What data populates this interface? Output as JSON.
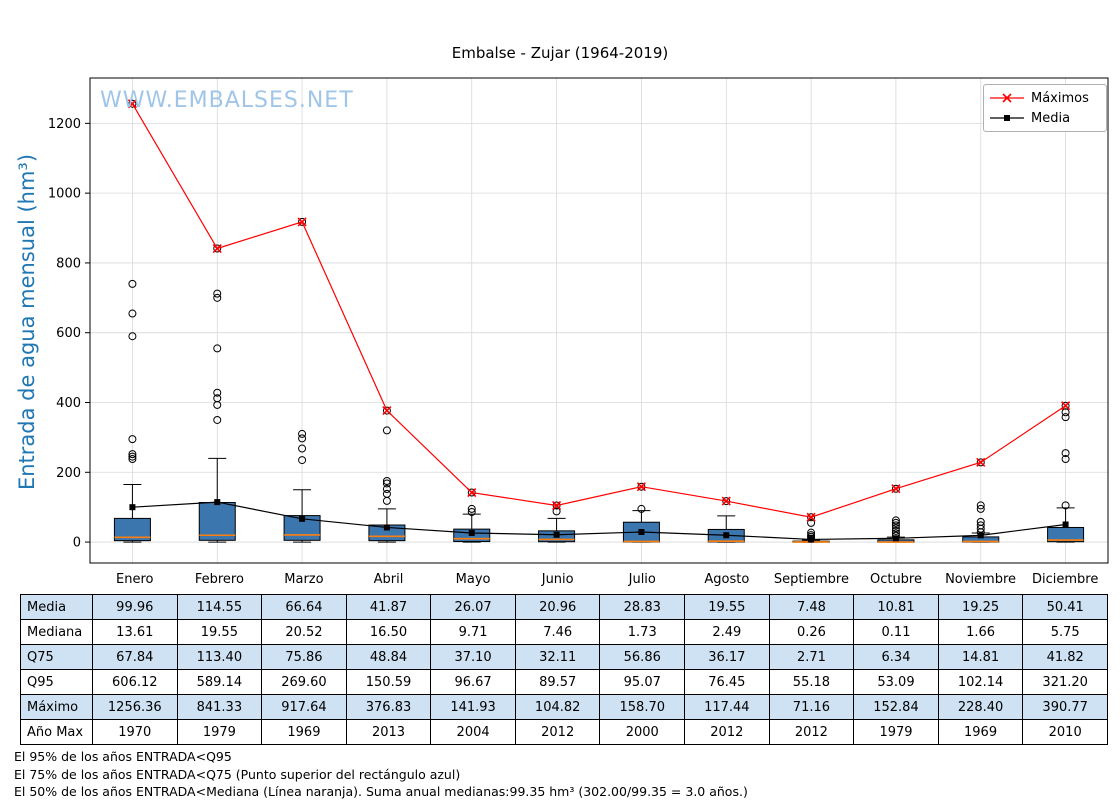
{
  "title": "Embalse - Zujar (1964-2019)",
  "watermark": "WWW.EMBALSES.NET",
  "y_axis_label": "Entrada de agua mensual (hm³)",
  "legend": {
    "maximos": "Máximos",
    "media": "Media"
  },
  "months": [
    "Enero",
    "Febrero",
    "Marzo",
    "Abril",
    "Mayo",
    "Junio",
    "Julio",
    "Agosto",
    "Septiembre",
    "Octubre",
    "Noviembre",
    "Diciembre"
  ],
  "table": {
    "rows": [
      {
        "label": "Media",
        "values": [
          "99.96",
          "114.55",
          "66.64",
          "41.87",
          "26.07",
          "20.96",
          "28.83",
          "19.55",
          "7.48",
          "10.81",
          "19.25",
          "50.41"
        ]
      },
      {
        "label": "Mediana",
        "values": [
          "13.61",
          "19.55",
          "20.52",
          "16.50",
          "9.71",
          "7.46",
          "1.73",
          "2.49",
          "0.26",
          "0.11",
          "1.66",
          "5.75"
        ]
      },
      {
        "label": "Q75",
        "values": [
          "67.84",
          "113.40",
          "75.86",
          "48.84",
          "37.10",
          "32.11",
          "56.86",
          "36.17",
          "2.71",
          "6.34",
          "14.81",
          "41.82"
        ]
      },
      {
        "label": "Q95",
        "values": [
          "606.12",
          "589.14",
          "269.60",
          "150.59",
          "96.67",
          "89.57",
          "95.07",
          "76.45",
          "55.18",
          "53.09",
          "102.14",
          "321.20"
        ]
      },
      {
        "label": "Máximo",
        "values": [
          "1256.36",
          "841.33",
          "917.64",
          "376.83",
          "141.93",
          "104.82",
          "158.70",
          "117.44",
          "71.16",
          "152.84",
          "228.40",
          "390.77"
        ]
      },
      {
        "label": "Año Max",
        "values": [
          "1970",
          "1979",
          "1969",
          "2013",
          "2004",
          "2012",
          "2000",
          "2012",
          "2012",
          "1979",
          "1969",
          "2010"
        ]
      }
    ]
  },
  "notes": [
    "El 95% de los años ENTRADA<Q95",
    "El 75% de los años ENTRADA<Q75 (Punto superior del rectángulo azul)",
    "El 50% de los años ENTRADA<Mediana (Línea naranja). Suma anual medianas:99.35 hm³ (302.00/99.35 = 3.0 años.)"
  ],
  "chart_data": {
    "type": "boxplot",
    "title": "Embalse - Zujar (1964-2019)",
    "ylabel": "Entrada de agua mensual (hm³)",
    "categories": [
      "Enero",
      "Febrero",
      "Marzo",
      "Abril",
      "Mayo",
      "Junio",
      "Julio",
      "Agosto",
      "Septiembre",
      "Octubre",
      "Noviembre",
      "Diciembre"
    ],
    "ylim": [
      -60,
      1330
    ],
    "yticks": [
      0,
      200,
      400,
      600,
      800,
      1000,
      1200
    ],
    "grid": true,
    "legend_position": "top-right",
    "series": [
      {
        "name": "Máximos",
        "type": "line",
        "marker": "x",
        "color": "#ff0000",
        "values": [
          1256.36,
          841.33,
          917.64,
          376.83,
          141.93,
          104.82,
          158.7,
          117.44,
          71.16,
          152.84,
          228.4,
          390.77
        ]
      },
      {
        "name": "Media",
        "type": "line",
        "marker": "square",
        "color": "#000000",
        "values": [
          99.96,
          114.55,
          66.64,
          41.87,
          26.07,
          20.96,
          28.83,
          19.55,
          7.48,
          10.81,
          19.25,
          50.41
        ]
      }
    ],
    "boxes": [
      {
        "month": "Enero",
        "q1": 4,
        "median": 13.61,
        "q3": 67.84,
        "whisker_low": 0,
        "whisker_high": 165,
        "max": 1256.36,
        "outliers": [
          238,
          245,
          252,
          295,
          590,
          655,
          740
        ]
      },
      {
        "month": "Febrero",
        "q1": 5,
        "median": 19.55,
        "q3": 113.4,
        "whisker_low": 0,
        "whisker_high": 240,
        "max": 841.33,
        "outliers": [
          350,
          393,
          412,
          428,
          555,
          700,
          712
        ]
      },
      {
        "month": "Marzo",
        "q1": 5,
        "median": 20.52,
        "q3": 75.86,
        "whisker_low": 0,
        "whisker_high": 150,
        "max": 917.64,
        "outliers": [
          235,
          268,
          297,
          310
        ]
      },
      {
        "month": "Abril",
        "q1": 4,
        "median": 16.5,
        "q3": 48.84,
        "whisker_low": 0,
        "whisker_high": 95,
        "max": 376.83,
        "outliers": [
          118,
          138,
          152,
          168,
          175,
          320
        ]
      },
      {
        "month": "Mayo",
        "q1": 1.5,
        "median": 9.71,
        "q3": 37.1,
        "whisker_low": 0,
        "whisker_high": 80,
        "max": 141.93,
        "outliers": [
          86,
          95
        ]
      },
      {
        "month": "Junio",
        "q1": 1,
        "median": 7.46,
        "q3": 32.11,
        "whisker_low": 0,
        "whisker_high": 68,
        "max": 104.82,
        "outliers": [
          88
        ]
      },
      {
        "month": "Julio",
        "q1": 0.2,
        "median": 1.73,
        "q3": 56.86,
        "whisker_low": 0,
        "whisker_high": 90,
        "max": 158.7,
        "outliers": [
          95
        ]
      },
      {
        "month": "Agosto",
        "q1": 0.4,
        "median": 2.49,
        "q3": 36.17,
        "whisker_low": 0,
        "whisker_high": 75,
        "max": 117.44,
        "outliers": []
      },
      {
        "month": "Septiembre",
        "q1": 0.02,
        "median": 0.26,
        "q3": 2.71,
        "whisker_low": 0,
        "whisker_high": 6,
        "max": 71.16,
        "outliers": [
          10,
          15,
          20,
          27,
          55
        ]
      },
      {
        "month": "Octubre",
        "q1": 0.01,
        "median": 0.11,
        "q3": 6.34,
        "whisker_low": 0,
        "whisker_high": 14,
        "max": 152.84,
        "outliers": [
          18,
          25,
          32,
          40,
          48,
          55,
          62
        ]
      },
      {
        "month": "Noviembre",
        "q1": 0.1,
        "median": 1.66,
        "q3": 14.81,
        "whisker_low": 0,
        "whisker_high": 26,
        "max": 228.4,
        "outliers": [
          28,
          38,
          48,
          58,
          95,
          105
        ]
      },
      {
        "month": "Diciembre",
        "q1": 1,
        "median": 5.75,
        "q3": 41.82,
        "whisker_low": 0,
        "whisker_high": 98,
        "max": 390.77,
        "outliers": [
          105,
          238,
          255,
          358,
          372
        ]
      }
    ],
    "colors": {
      "box_fill": "#3b76af",
      "box_edge": "#000000",
      "median": "#ff7f0e",
      "max_line": "#ff0000",
      "mean_line": "#000000",
      "grid": "#d9d9d9"
    }
  }
}
